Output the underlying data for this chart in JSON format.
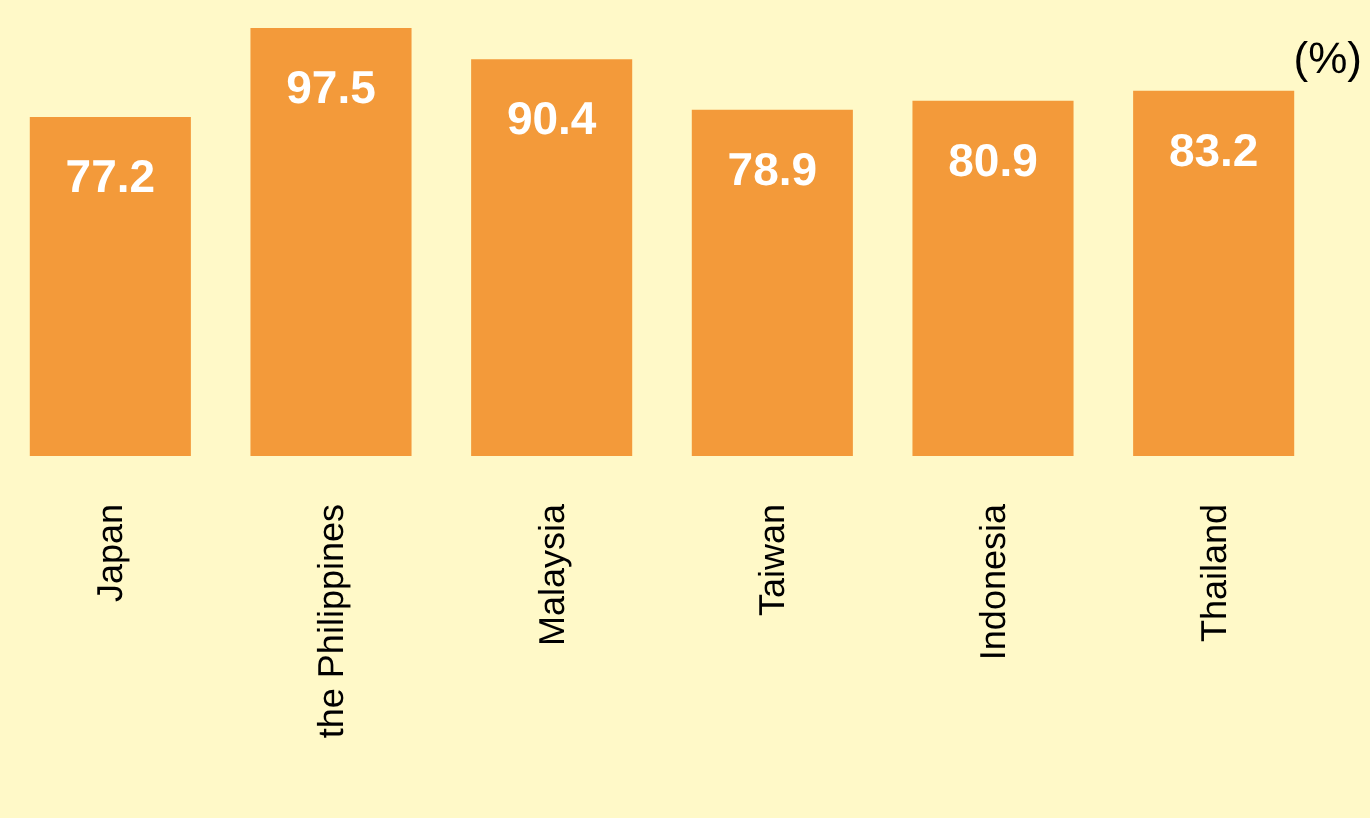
{
  "chart_data": {
    "type": "bar",
    "ylabel": "(%)",
    "categories": [
      "Japan",
      "the Philippines",
      "Malaysia",
      "Taiwan",
      "Indonesia",
      "Thailand"
    ],
    "values": [
      77.2,
      97.5,
      90.4,
      78.9,
      80.9,
      83.2
    ],
    "color": "#f39a3a",
    "data_labels": true
  }
}
